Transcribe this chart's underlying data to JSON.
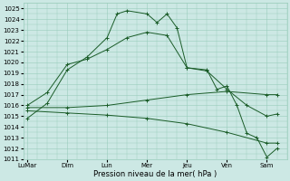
{
  "xlabel": "Pression niveau de la mer( hPa )",
  "ylim": [
    1011,
    1025.5
  ],
  "yticks": [
    1011,
    1012,
    1013,
    1014,
    1015,
    1016,
    1017,
    1018,
    1019,
    1020,
    1021,
    1022,
    1023,
    1024,
    1025
  ],
  "xtick_labels": [
    "LuMar",
    "Dim",
    "Lun",
    "Mer",
    "Jeu",
    "Ven",
    "Sam"
  ],
  "xtick_positions": [
    0,
    2,
    4,
    6,
    8,
    10,
    12
  ],
  "xlim": [
    -0.2,
    13.0
  ],
  "background_color": "#cce8e4",
  "grid_color": "#99ccbb",
  "line_color": "#1a5c28",
  "series": [
    {
      "x": [
        0,
        1,
        2,
        3,
        4,
        4.5,
        5,
        6,
        6.5,
        7,
        7.5,
        8,
        9,
        9.5,
        10,
        10.5,
        11,
        11.5,
        12,
        12.5
      ],
      "y": [
        1014.8,
        1016.2,
        1019.3,
        1020.5,
        1022.3,
        1024.5,
        1024.8,
        1024.5,
        1023.7,
        1024.5,
        1023.2,
        1019.5,
        1019.3,
        1017.5,
        1017.8,
        1016.0,
        1013.4,
        1013.0,
        1011.2,
        1012.0
      ]
    },
    {
      "x": [
        0,
        1,
        2,
        3,
        4,
        5,
        6,
        7,
        8,
        9,
        10,
        11,
        12,
        12.5
      ],
      "y": [
        1016.0,
        1017.2,
        1019.8,
        1020.3,
        1021.2,
        1022.3,
        1022.8,
        1022.5,
        1019.5,
        1019.2,
        1017.5,
        1016.0,
        1015.0,
        1015.2
      ]
    },
    {
      "x": [
        0,
        2,
        4,
        6,
        8,
        10,
        12,
        12.5
      ],
      "y": [
        1015.8,
        1015.8,
        1016.0,
        1016.5,
        1017.0,
        1017.3,
        1017.0,
        1017.0
      ]
    },
    {
      "x": [
        0,
        2,
        4,
        6,
        8,
        10,
        12,
        12.5
      ],
      "y": [
        1015.5,
        1015.3,
        1015.1,
        1014.8,
        1014.3,
        1013.5,
        1012.5,
        1012.5
      ]
    }
  ],
  "marker": "+"
}
